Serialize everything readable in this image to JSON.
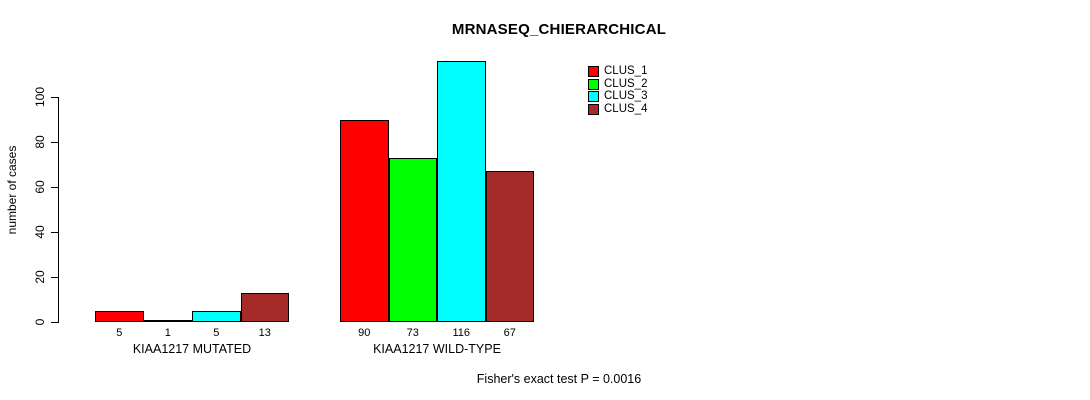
{
  "chart_data": {
    "type": "bar",
    "title": "MRNASEQ_CHIERARCHICAL",
    "ylabel": "number of cases",
    "footer": "Fisher's exact test P = 0.0016",
    "yticks": [
      0,
      20,
      40,
      60,
      80,
      100
    ],
    "ylim": [
      0,
      116
    ],
    "grid": false,
    "legend_position": "top-right",
    "bar_border_color": "#000000",
    "series": [
      {
        "name": "CLUS_1",
        "color": "#FF0000"
      },
      {
        "name": "CLUS_2",
        "color": "#00FF00"
      },
      {
        "name": "CLUS_3",
        "color": "#00FFFF"
      },
      {
        "name": "CLUS_4",
        "color": "#A52A2A"
      }
    ],
    "categories": [
      "KIAA1217 MUTATED",
      "KIAA1217 WILD-TYPE"
    ],
    "groups": [
      {
        "label": "KIAA1217 MUTATED",
        "values": [
          5,
          1,
          5,
          13
        ]
      },
      {
        "label": "KIAA1217 WILD-TYPE",
        "values": [
          90,
          73,
          116,
          67
        ]
      }
    ]
  }
}
